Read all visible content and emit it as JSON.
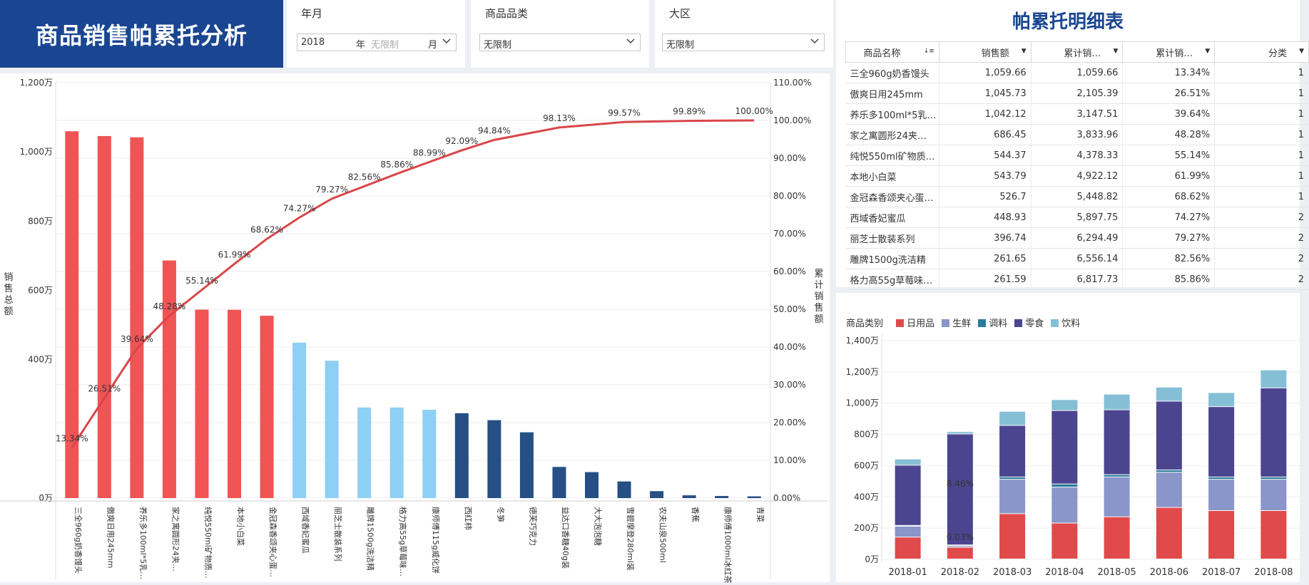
{
  "header": {
    "title": "商品销售帕累托分析"
  },
  "filters": [
    {
      "label": "年月",
      "year": "2018",
      "year_unit": "年",
      "month_placeholder": "无限制",
      "month_unit": "月"
    },
    {
      "label": "商品品类",
      "value": "无限制"
    },
    {
      "label": "大区",
      "value": "无限制"
    }
  ],
  "pareto": {
    "y_left_label": "销售总额",
    "y_right_label": "累计销售额",
    "y_left_ticks": [
      "0万",
      "400万",
      "600万",
      "800万",
      "1,000万",
      "1,200万"
    ],
    "y_right_ticks": [
      "0.00%",
      "10.00%",
      "20.00%",
      "30.00%",
      "40.00%",
      "50.00%",
      "60.00%",
      "70.00%",
      "80.00%",
      "90.00%",
      "100.00%",
      "110.00%"
    ],
    "colors": {
      "A": "#f05454",
      "B": "#8ecff5",
      "C": "#254f85",
      "line": "#d9464a"
    }
  },
  "chart_data": [
    {
      "type": "bar",
      "title": "",
      "categories": [
        "三全960g奶香馒头",
        "傲爽日用245mm",
        "养乐多100ml*5乳…",
        "家之寓圆形24夹…",
        "纯悦550ml矿物质…",
        "本地小白菜",
        "金冠森香颂夹心蛋…",
        "西域香妃蜜瓜",
        "丽芝士散装系列",
        "雕牌1500g洗洁精",
        "格力高55g草莓味…",
        "康师傅115g威化饼",
        "西红柿",
        "冬笋",
        "德芙巧克力",
        "益达口香糖40g装",
        "大大泡泡糖",
        "雪碧摩登280ml装",
        "农夫山泉500ml",
        "香蕉",
        "康师傅1000ml冰红茶",
        "青菜"
      ],
      "values": [
        1059.66,
        1045.73,
        1042.12,
        686.45,
        544.37,
        543.79,
        526.7,
        448.93,
        396.74,
        261.65,
        261.59,
        255,
        245,
        225,
        190,
        90,
        75,
        48,
        20,
        8,
        6,
        5
      ],
      "classes": [
        "A",
        "A",
        "A",
        "A",
        "A",
        "A",
        "A",
        "B",
        "B",
        "B",
        "B",
        "B",
        "C",
        "C",
        "C",
        "C",
        "C",
        "C",
        "C",
        "C",
        "C",
        "C"
      ],
      "cumulative_pct": [
        13.34,
        26.51,
        39.64,
        48.28,
        55.14,
        61.99,
        68.62,
        74.27,
        79.27,
        82.56,
        85.86,
        88.99,
        92.09,
        94.84,
        null,
        98.13,
        null,
        99.57,
        null,
        99.89,
        null,
        100.0
      ],
      "cumulative_labels": [
        "13.34%",
        "26.51%",
        "39.64%",
        "48.28%",
        "55.14%",
        "61.99%",
        "68.62%",
        "74.27%",
        "79.27%",
        "82.56%",
        "85.86%",
        "88.99%",
        "92.09%",
        "94.84%",
        "",
        "98.13%",
        "",
        "99.57%",
        "",
        "99.89%",
        "",
        "100.00%"
      ],
      "xlabel": "",
      "ylabel": "销售总额",
      "y2label": "累计销售额",
      "ylim": [
        0,
        1200
      ],
      "y2lim": [
        0,
        110
      ]
    },
    {
      "type": "bar",
      "title": "",
      "stacked": true,
      "legend_title": "商品类别",
      "categories": [
        "2018-01",
        "2018-02",
        "2018-03",
        "2018-04",
        "2018-05",
        "2018-06",
        "2018-07",
        "2018-08"
      ],
      "series": [
        {
          "name": "日用品",
          "color": "#e04a4a",
          "values": [
            140,
            75,
            290,
            230,
            270,
            330,
            310,
            310
          ]
        },
        {
          "name": "生鲜",
          "color": "#8a95c9",
          "values": [
            70,
            10,
            220,
            230,
            255,
            225,
            200,
            200
          ]
        },
        {
          "name": "调料",
          "color": "#2a7a9b",
          "values": [
            5,
            5,
            15,
            20,
            15,
            15,
            15,
            15
          ]
        },
        {
          "name": "零食",
          "color": "#4b4590",
          "values": [
            385,
            710,
            330,
            470,
            415,
            440,
            450,
            570
          ]
        },
        {
          "name": "饮料",
          "color": "#85bfd5",
          "values": [
            40,
            15,
            90,
            70,
            100,
            90,
            90,
            115
          ]
        }
      ],
      "annotations": [
        "8.46%",
        "0.03%"
      ],
      "ylim": [
        0,
        1400
      ],
      "y_ticks": [
        "0万",
        "200万",
        "400万",
        "600万",
        "800万",
        "1,000万",
        "1,200万",
        "1,400万"
      ]
    }
  ],
  "detail": {
    "title": "帕累托明细表",
    "columns": [
      "商品名称",
      "销售额",
      "累计销…",
      "累计销…",
      "分类"
    ],
    "rows": [
      [
        "三全960g奶香馒头",
        "1,059.66",
        "1,059.66",
        "13.34%",
        "1"
      ],
      [
        "傲爽日用245mm",
        "1,045.73",
        "2,105.39",
        "26.51%",
        "1"
      ],
      [
        "养乐多100ml*5乳…",
        "1,042.12",
        "3,147.51",
        "39.64%",
        "1"
      ],
      [
        "家之寓圆形24夹…",
        "686.45",
        "3,833.96",
        "48.28%",
        "1"
      ],
      [
        "纯悦550ml矿物质…",
        "544.37",
        "4,378.33",
        "55.14%",
        "1"
      ],
      [
        "本地小白菜",
        "543.79",
        "4,922.12",
        "61.99%",
        "1"
      ],
      [
        "金冠森香颂夹心蛋…",
        "526.7",
        "5,448.82",
        "68.62%",
        "1"
      ],
      [
        "西域香妃蜜瓜",
        "448.93",
        "5,897.75",
        "74.27%",
        "2"
      ],
      [
        "丽芝士散装系列",
        "396.74",
        "6,294.49",
        "79.27%",
        "2"
      ],
      [
        "雕牌1500g洗洁精",
        "261.65",
        "6,556.14",
        "82.56%",
        "2"
      ],
      [
        "格力高55g草莓味…",
        "261.59",
        "6,817.73",
        "85.86%",
        "2"
      ]
    ]
  }
}
